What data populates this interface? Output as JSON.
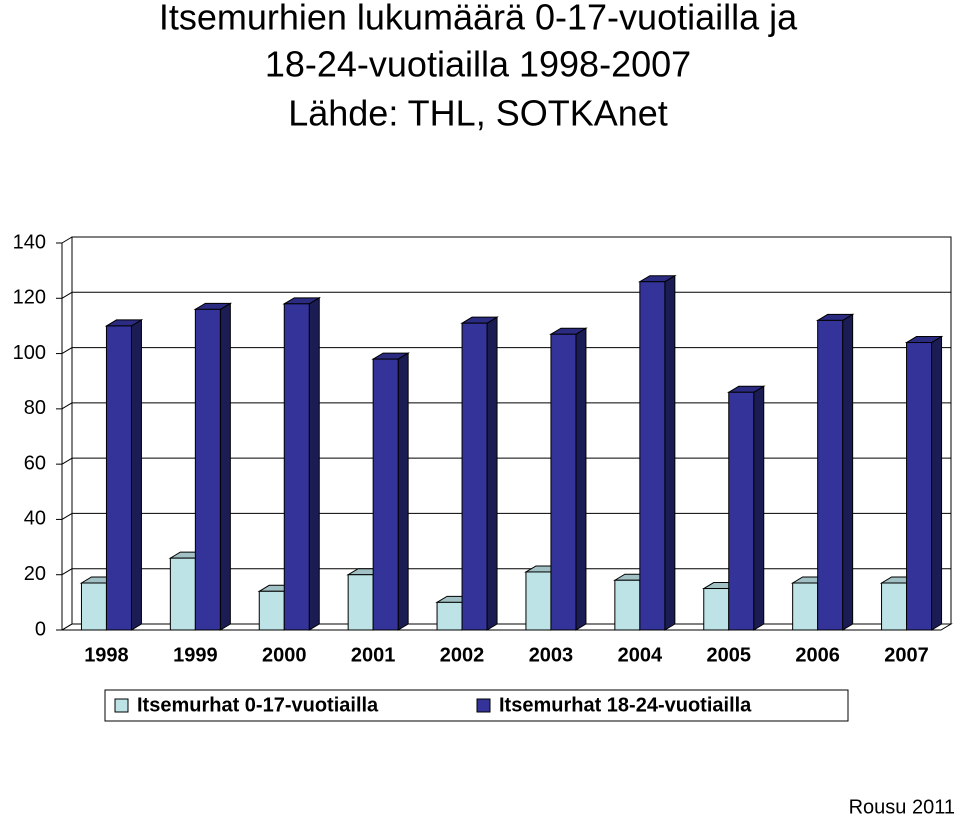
{
  "chart_data": {
    "type": "bar3d",
    "title": [
      "Itsemurhien lukumäärä 0-17-vuotiailla ja",
      "18-24-vuotiailla 1998-2007",
      "Lähde: THL, SOTKAnet"
    ],
    "categories": [
      "1998",
      "1999",
      "2000",
      "2001",
      "2002",
      "2003",
      "2004",
      "2005",
      "2006",
      "2007"
    ],
    "series": [
      {
        "name": "Itsemurhat 0-17-vuotiailla",
        "color": "#bde3e6",
        "values": [
          17,
          26,
          14,
          20,
          10,
          21,
          18,
          15,
          17,
          17
        ]
      },
      {
        "name": "Itsemurhat 18-24-vuotiailla",
        "color": "#333399",
        "values": [
          110,
          116,
          118,
          98,
          111,
          107,
          126,
          86,
          112,
          104
        ]
      }
    ],
    "ylim": [
      0,
      140
    ],
    "yticks": [
      0,
      20,
      40,
      60,
      80,
      100,
      120,
      140
    ],
    "grid": true,
    "annotation": "Rousu 2011"
  }
}
